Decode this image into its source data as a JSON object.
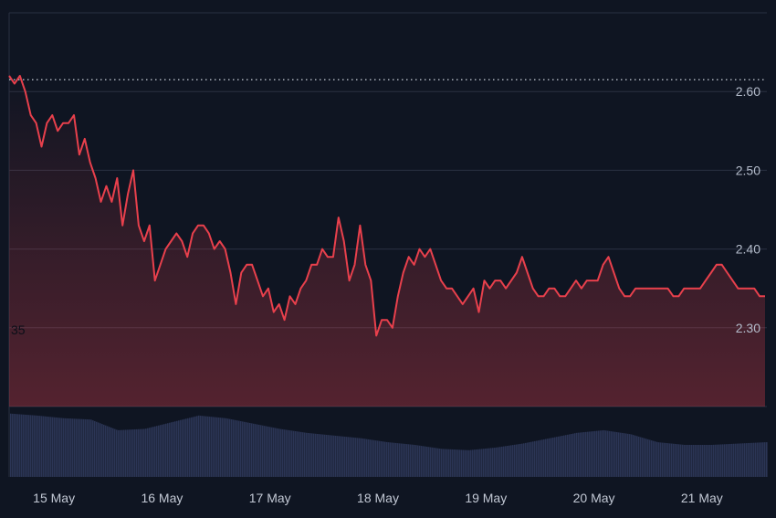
{
  "chart_data": {
    "type": "area",
    "y_ticks": [
      2.3,
      2.4,
      2.5,
      2.6
    ],
    "y_tick_labels": [
      "2.30",
      "2.40",
      "2.50",
      "2.60"
    ],
    "ylim": [
      2.2,
      2.7
    ],
    "reference_line": 2.615,
    "stray_label": "35",
    "x_tick_labels": [
      "15 May",
      "16 May",
      "17 May",
      "18 May",
      "19 May",
      "20 May",
      "21 May"
    ],
    "xlim": [
      0,
      7.0
    ],
    "x_tick_positions": [
      0.5,
      1.5,
      2.5,
      3.5,
      4.5,
      5.5,
      6.5
    ],
    "grid": true,
    "colors": {
      "background": "#0f1522",
      "up_line": "#2fbf85",
      "down_line": "#e8404c",
      "volume": "#2b3555",
      "grid": "#2a3142"
    },
    "series": [
      {
        "x": [
          0.0,
          0.05,
          0.1,
          0.15,
          0.2,
          0.25,
          0.3,
          0.35,
          0.4,
          0.45,
          0.5,
          0.55,
          0.6,
          0.65,
          0.7,
          0.75,
          0.8,
          0.85,
          0.9,
          0.95,
          1.0,
          1.05,
          1.1,
          1.15,
          1.2,
          1.25,
          1.3,
          1.35,
          1.4,
          1.45,
          1.5,
          1.55,
          1.6,
          1.65,
          1.7,
          1.75,
          1.8,
          1.85,
          1.9,
          1.95,
          2.0,
          2.05,
          2.1,
          2.15,
          2.2,
          2.25,
          2.3,
          2.35,
          2.4,
          2.45,
          2.5,
          2.55,
          2.6,
          2.65,
          2.7,
          2.75,
          2.8,
          2.85,
          2.9,
          2.95,
          3.0,
          3.05,
          3.1,
          3.15,
          3.2,
          3.25,
          3.3,
          3.35,
          3.4,
          3.45,
          3.5,
          3.55,
          3.6,
          3.65,
          3.7,
          3.75,
          3.8,
          3.85,
          3.9,
          3.95,
          4.0,
          4.05,
          4.1,
          4.15,
          4.2,
          4.25,
          4.3,
          4.35,
          4.4,
          4.45,
          4.5,
          4.55,
          4.6,
          4.65,
          4.7,
          4.75,
          4.8,
          4.85,
          4.9,
          4.95,
          5.0,
          5.05,
          5.1,
          5.15,
          5.2,
          5.25,
          5.3,
          5.35,
          5.4,
          5.45,
          5.5,
          5.55,
          5.6,
          5.65,
          5.7,
          5.75,
          5.8,
          5.85,
          5.9,
          5.95,
          6.0,
          6.05,
          6.1,
          6.15,
          6.2,
          6.25,
          6.3,
          6.35,
          6.4,
          6.45,
          6.5,
          6.55,
          6.6,
          6.65,
          6.7,
          6.75,
          6.8,
          6.85,
          6.9,
          6.95,
          7.0
        ],
        "y": [
          2.62,
          2.61,
          2.62,
          2.6,
          2.57,
          2.56,
          2.53,
          2.56,
          2.57,
          2.55,
          2.56,
          2.56,
          2.57,
          2.52,
          2.54,
          2.51,
          2.49,
          2.46,
          2.48,
          2.46,
          2.49,
          2.43,
          2.47,
          2.5,
          2.43,
          2.41,
          2.43,
          2.36,
          2.38,
          2.4,
          2.41,
          2.42,
          2.41,
          2.39,
          2.42,
          2.43,
          2.43,
          2.42,
          2.4,
          2.41,
          2.4,
          2.37,
          2.33,
          2.37,
          2.38,
          2.38,
          2.36,
          2.34,
          2.35,
          2.32,
          2.33,
          2.31,
          2.34,
          2.33,
          2.35,
          2.36,
          2.38,
          2.38,
          2.4,
          2.39,
          2.39,
          2.44,
          2.41,
          2.36,
          2.38,
          2.43,
          2.38,
          2.36,
          2.29,
          2.31,
          2.31,
          2.3,
          2.34,
          2.37,
          2.39,
          2.38,
          2.4,
          2.39,
          2.4,
          2.38,
          2.36,
          2.35,
          2.35,
          2.34,
          2.33,
          2.34,
          2.35,
          2.32,
          2.36,
          2.35,
          2.36,
          2.36,
          2.35,
          2.36,
          2.37,
          2.39,
          2.37,
          2.35,
          2.34,
          2.34,
          2.35,
          2.35,
          2.34,
          2.34,
          2.35,
          2.36,
          2.35,
          2.36,
          2.36,
          2.36,
          2.38,
          2.39,
          2.37,
          2.35,
          2.34,
          2.34,
          2.35,
          2.35,
          2.35,
          2.35,
          2.35,
          2.35,
          2.35,
          2.34,
          2.34,
          2.35,
          2.35,
          2.35,
          2.35,
          2.36,
          2.37,
          2.38,
          2.38,
          2.37,
          2.36,
          2.35,
          2.35,
          2.35,
          2.35,
          2.34,
          2.34
        ]
      }
    ],
    "volume": {
      "x": [
        0.0,
        0.25,
        0.5,
        0.75,
        1.0,
        1.25,
        1.5,
        1.75,
        2.0,
        2.25,
        2.5,
        2.75,
        3.0,
        3.25,
        3.5,
        3.75,
        4.0,
        4.25,
        4.5,
        4.75,
        5.0,
        5.25,
        5.5,
        5.75,
        6.0,
        6.25,
        6.5,
        6.75,
        7.0
      ],
      "values": [
        0.95,
        0.92,
        0.88,
        0.86,
        0.7,
        0.72,
        0.82,
        0.92,
        0.88,
        0.8,
        0.72,
        0.66,
        0.62,
        0.58,
        0.52,
        0.48,
        0.42,
        0.4,
        0.44,
        0.5,
        0.58,
        0.66,
        0.7,
        0.64,
        0.52,
        0.48,
        0.48,
        0.5,
        0.52
      ]
    }
  }
}
